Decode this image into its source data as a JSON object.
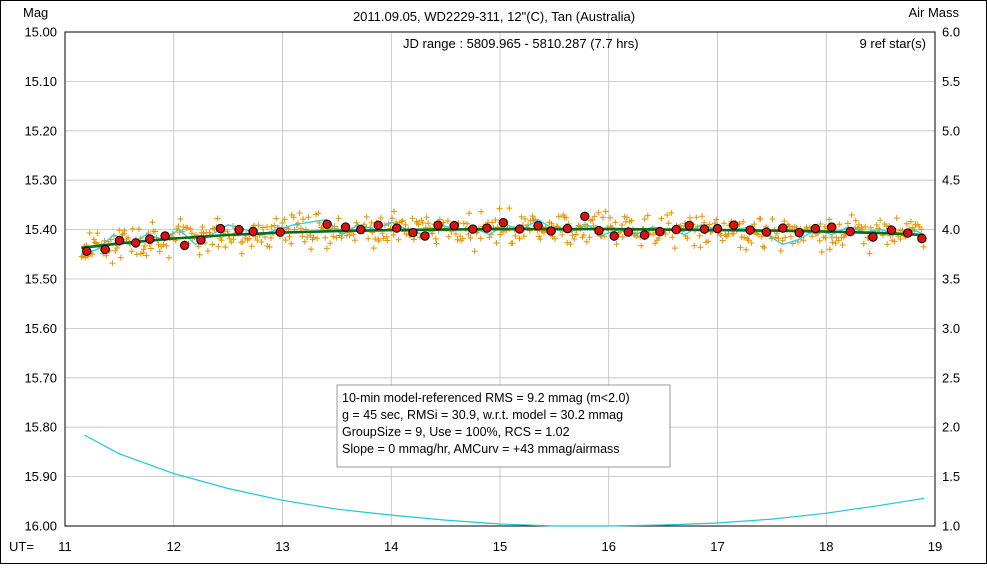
{
  "chart_data": {
    "type": "scatter",
    "title": "2011.09.05, WD2229-311, 12\"(C), Tan (Australia)",
    "y_left_label": "Mag",
    "y_right_label": "Air Mass",
    "x_label": "UT=",
    "x_ticks": [
      "11",
      "12",
      "13",
      "14",
      "15",
      "16",
      "17",
      "18",
      "19"
    ],
    "y_left_ticks": [
      "15.00",
      "15.10",
      "15.20",
      "15.30",
      "15.40",
      "15.50",
      "15.60",
      "15.70",
      "15.80",
      "15.90",
      "16.00"
    ],
    "y_right_ticks": [
      "6.0",
      "5.5",
      "5.0",
      "4.5",
      "4.0",
      "3.5",
      "3.0",
      "2.5",
      "2.0",
      "1.5",
      "1.0"
    ],
    "xlim": [
      11,
      19
    ],
    "ylim_left": [
      16.0,
      15.0
    ],
    "ylim_right": [
      1.0,
      6.0
    ],
    "jd_range": "JD range : 5809.965 - 5810.287 (7.7 hrs)",
    "ref_stars": "9 ref star(s)",
    "info_lines": [
      "10-min model-referenced RMS = 9.2 mmag (m<2.0)",
      "g = 45 sec, RMSi = 30.9, w.r.t. model = 30.2 mmag",
      "GroupSize = 9, Use = 100%, RCS = 1.02",
      "Slope = 0 mmag/hr, AMCurv = +43 mmag/airmass"
    ],
    "grid": true,
    "group_averages": {
      "x": [
        11.2,
        11.37,
        11.5,
        11.65,
        11.78,
        11.92,
        12.1,
        12.25,
        12.43,
        12.6,
        12.73,
        12.98,
        13.41,
        13.58,
        13.72,
        13.88,
        14.05,
        14.2,
        14.31,
        14.43,
        14.58,
        14.75,
        14.88,
        15.03,
        15.18,
        15.35,
        15.47,
        15.62,
        15.78,
        15.91,
        16.05,
        16.18,
        16.33,
        16.47,
        16.62,
        16.74,
        16.88,
        17.0,
        17.15,
        17.3,
        17.45,
        17.6,
        17.75,
        17.9,
        18.05,
        18.22,
        18.43,
        18.6,
        18.75,
        18.88
      ],
      "y": [
        15.444,
        15.44,
        15.422,
        15.427,
        15.419,
        15.413,
        15.432,
        15.421,
        15.398,
        15.4,
        15.404,
        15.405,
        15.389,
        15.395,
        15.4,
        15.391,
        15.397,
        15.406,
        15.413,
        15.391,
        15.392,
        15.399,
        15.397,
        15.386,
        15.399,
        15.392,
        15.403,
        15.398,
        15.373,
        15.402,
        15.413,
        15.405,
        15.411,
        15.404,
        15.4,
        15.392,
        15.399,
        15.398,
        15.391,
        15.401,
        15.405,
        15.397,
        15.406,
        15.398,
        15.395,
        15.404,
        15.415,
        15.401,
        15.407,
        15.418
      ]
    },
    "model_curve": {
      "x": [
        11.15,
        11.5,
        12.0,
        12.5,
        13.0,
        13.5,
        14.0,
        14.5,
        15.0,
        15.5,
        16.0,
        16.5,
        17.0,
        17.5,
        18.0,
        18.5,
        18.9
      ],
      "y": [
        15.437,
        15.428,
        15.418,
        15.411,
        15.406,
        15.403,
        15.401,
        15.4,
        15.399,
        15.399,
        15.399,
        15.4,
        15.401,
        15.402,
        15.404,
        15.407,
        15.411
      ]
    },
    "running_average": {
      "x": [
        11.15,
        11.3,
        11.45,
        11.6,
        11.75,
        11.9,
        12.05,
        12.2,
        12.35,
        12.5,
        12.65,
        12.8,
        12.95,
        13.1,
        13.25,
        13.4,
        13.55,
        13.7,
        13.85,
        14.0,
        14.15,
        14.3,
        14.45,
        14.6,
        14.75,
        14.9,
        15.05,
        15.2,
        15.35,
        15.5,
        15.65,
        15.8,
        15.95,
        16.1,
        16.25,
        16.4,
        16.55,
        16.7,
        16.85,
        17.0,
        17.15,
        17.3,
        17.45,
        17.6,
        17.75,
        17.9,
        18.05,
        18.2,
        18.35,
        18.5,
        18.65,
        18.8,
        18.9
      ],
      "y": [
        15.45,
        15.44,
        15.41,
        15.43,
        15.41,
        15.42,
        15.4,
        15.43,
        15.41,
        15.39,
        15.4,
        15.41,
        15.4,
        15.39,
        15.385,
        15.38,
        15.41,
        15.39,
        15.4,
        15.385,
        15.4,
        15.41,
        15.39,
        15.4,
        15.395,
        15.41,
        15.39,
        15.4,
        15.38,
        15.4,
        15.405,
        15.39,
        15.41,
        15.4,
        15.41,
        15.395,
        15.4,
        15.41,
        15.39,
        15.4,
        15.4,
        15.395,
        15.41,
        15.43,
        15.42,
        15.4,
        15.41,
        15.395,
        15.405,
        15.4,
        15.41,
        15.4,
        15.41
      ]
    },
    "airmass": {
      "x": [
        11.18,
        11.5,
        12.0,
        12.5,
        13.0,
        13.5,
        14.0,
        14.5,
        15.0,
        15.5,
        16.0,
        16.5,
        17.0,
        17.5,
        18.0,
        18.5,
        18.9
      ],
      "y": [
        1.92,
        1.73,
        1.53,
        1.38,
        1.26,
        1.17,
        1.11,
        1.06,
        1.02,
        1.0,
        1.0,
        1.01,
        1.03,
        1.07,
        1.13,
        1.21,
        1.28
      ]
    },
    "colors": {
      "raw_points": "#e59400",
      "group_fill": "#dd1111",
      "model": "#0a6b1a",
      "running": "#27d3e6",
      "airmass": "#1ec6dc",
      "grid": "#bdbdbd"
    }
  }
}
